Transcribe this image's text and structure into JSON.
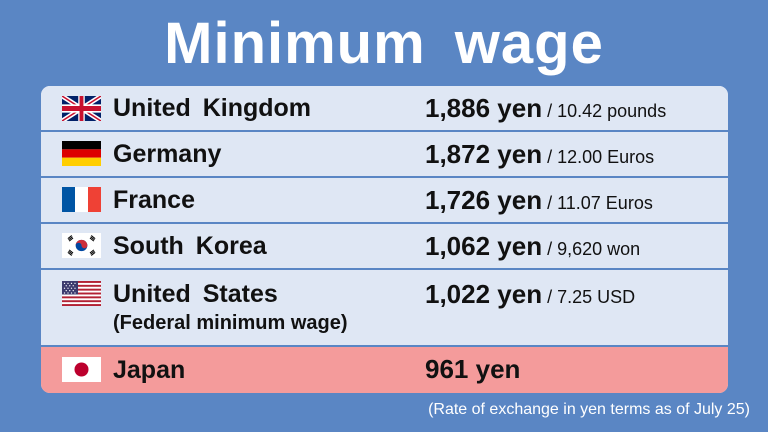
{
  "title": "Minimum wage",
  "rows": [
    {
      "country": "United Kingdom",
      "yen": "1,886 yen",
      "local": " / 10.42 pounds",
      "flag": "uk-flag-icon"
    },
    {
      "country": "Germany",
      "yen": "1,872 yen",
      "local": " / 12.00 Euros",
      "flag": "germany-flag-icon"
    },
    {
      "country": "France",
      "yen": "1,726 yen",
      "local": " / 11.07 Euros",
      "flag": "france-flag-icon"
    },
    {
      "country": "South Korea",
      "yen": "1,062 yen",
      "local": " / 9,620 won",
      "flag": "south-korea-flag-icon"
    },
    {
      "country": "United States",
      "subtitle": "(Federal minimum wage)",
      "yen": "1,022 yen",
      "local": " / 7.25 USD",
      "flag": "us-flag-icon"
    },
    {
      "country": "Japan",
      "yen": "961 yen",
      "flag": "japan-flag-icon"
    }
  ],
  "footnote": "(Rate of exchange in yen terms as of July 25)",
  "colors": {
    "background": "#5a86c4",
    "row": "#dfe7f4",
    "highlight_row": "#f49b9b",
    "text": "#111111"
  }
}
